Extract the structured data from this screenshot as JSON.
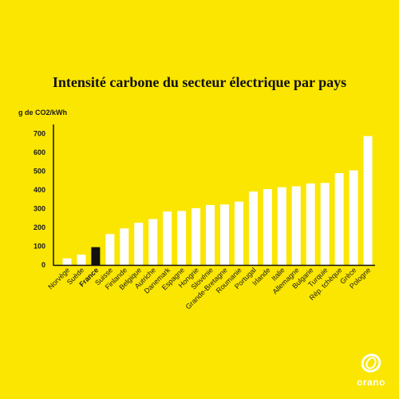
{
  "colors": {
    "background": "#FAE600",
    "bar": "#FFFFFF",
    "highlight_bar": "#111111",
    "text": "#111111"
  },
  "logo": {
    "text": "orano",
    "icon": "orano-logo-icon"
  },
  "chart_data": {
    "type": "bar",
    "title": "Intensité carbone du secteur électrique par pays",
    "ylabel": "g de CO2/kWh",
    "xlabel": "",
    "ylim": [
      0,
      750
    ],
    "yticks": [
      0,
      100,
      200,
      300,
      400,
      500,
      600,
      700
    ],
    "grid": false,
    "legend": "none",
    "highlight": "France",
    "categories": [
      "Norvège",
      "Suède",
      "France",
      "Suisse",
      "Finlande",
      "Belgique",
      "Autriche",
      "Danemark",
      "Espagne",
      "Hongrie",
      "Slovénie",
      "Grande-Bretagne",
      "Roumanie",
      "Portugal",
      "Irlande",
      "Italie",
      "Allemagne",
      "Bulgarie",
      "Turquie",
      "Rép. tchèque",
      "Grèce",
      "Pologne"
    ],
    "values": [
      35,
      55,
      95,
      165,
      195,
      225,
      245,
      285,
      288,
      303,
      320,
      323,
      338,
      392,
      405,
      415,
      420,
      435,
      438,
      490,
      505,
      688
    ]
  }
}
